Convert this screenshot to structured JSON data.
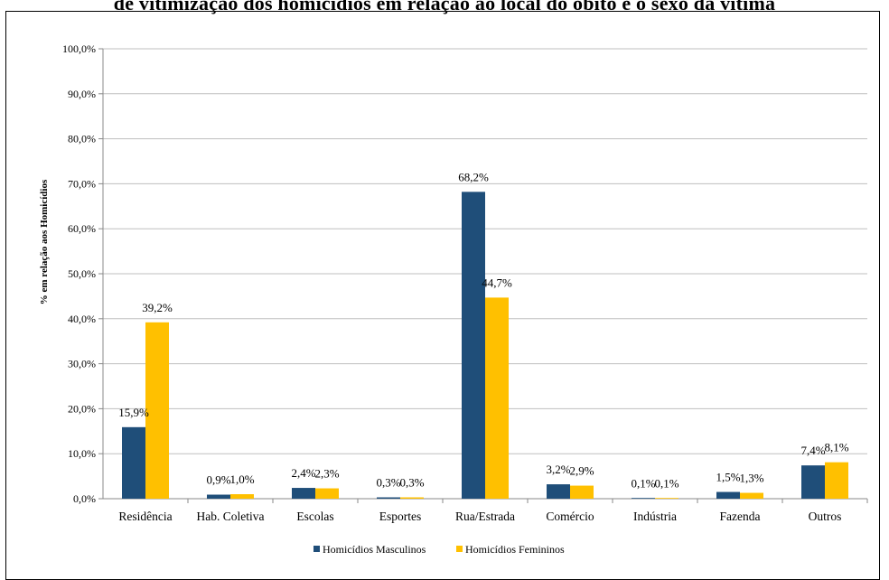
{
  "page_title": "de vitimização dos homicídios em relação ao local do óbito e o sexo da vítima",
  "colors": {
    "male": "#1F4E79",
    "female": "#FFC000",
    "grid": "#BFBFBF"
  },
  "chart_data": {
    "type": "bar",
    "title": "",
    "xlabel": "",
    "ylabel": "% em relação aos Homicídios",
    "ylim": [
      0,
      100
    ],
    "yticks": [
      "0,0%",
      "10,0%",
      "20,0%",
      "30,0%",
      "40,0%",
      "50,0%",
      "60,0%",
      "70,0%",
      "80,0%",
      "90,0%",
      "100,0%"
    ],
    "grid": true,
    "legend_position": "bottom",
    "categories": [
      "Residência",
      "Hab. Coletiva",
      "Escolas",
      "Esportes",
      "Rua/Estrada",
      "Comércio",
      "Indústria",
      "Fazenda",
      "Outros"
    ],
    "series": [
      {
        "name": "Homicídios Masculinos",
        "values": [
          15.9,
          0.9,
          2.4,
          0.3,
          68.2,
          3.2,
          0.1,
          1.5,
          7.4
        ],
        "labels": [
          "15,9%",
          "0,9%",
          "2,4%",
          "0,3%",
          "68,2%",
          "3,2%",
          "0,1%",
          "1,5%",
          "7,4%"
        ]
      },
      {
        "name": "Homicídios Femininos",
        "values": [
          39.2,
          1.0,
          2.3,
          0.3,
          44.7,
          2.9,
          0.1,
          1.3,
          8.1
        ],
        "labels": [
          "39,2%",
          "1,0%",
          "2,3%",
          "0,3%",
          "44,7%",
          "2,9%",
          "0,1%",
          "1,3%",
          "8,1%"
        ]
      }
    ]
  }
}
